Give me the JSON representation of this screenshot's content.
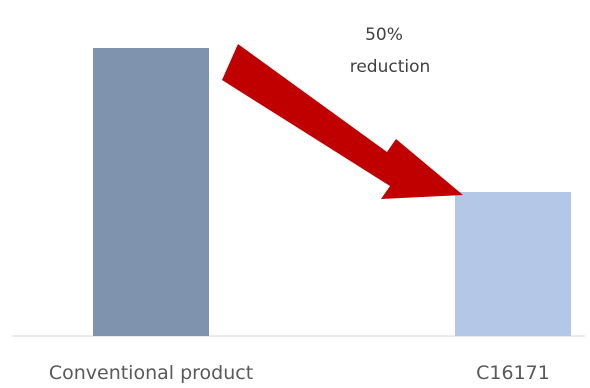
{
  "chart_data": {
    "type": "bar",
    "categories": [
      "Conventional product",
      "C16171"
    ],
    "values": [
      100,
      50
    ],
    "colors": [
      "#7f93af",
      "#b4c7e7"
    ],
    "ylim": [
      0,
      100
    ],
    "grid": false,
    "title": "",
    "xlabel": "",
    "ylabel": "",
    "annotation": {
      "line1": "50%",
      "line2": "reduction",
      "arrow_color": "#c00000"
    }
  }
}
